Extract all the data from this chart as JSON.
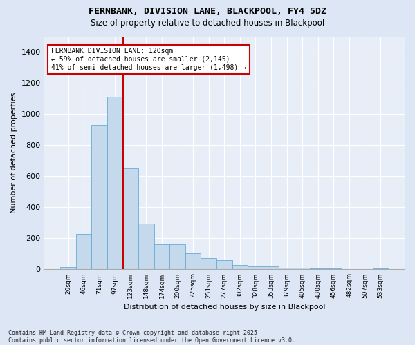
{
  "title1": "FERNBANK, DIVISION LANE, BLACKPOOL, FY4 5DZ",
  "title2": "Size of property relative to detached houses in Blackpool",
  "xlabel": "Distribution of detached houses by size in Blackpool",
  "ylabel": "Number of detached properties",
  "footnote": "Contains HM Land Registry data © Crown copyright and database right 2025.\nContains public sector information licensed under the Open Government Licence v3.0.",
  "bar_values": [
    15,
    230,
    930,
    1110,
    650,
    295,
    160,
    160,
    105,
    75,
    60,
    30,
    20,
    20,
    10,
    10,
    8,
    5,
    3,
    0,
    8
  ],
  "bin_labels": [
    "20sqm",
    "46sqm",
    "71sqm",
    "97sqm",
    "123sqm",
    "148sqm",
    "174sqm",
    "200sqm",
    "225sqm",
    "251sqm",
    "277sqm",
    "302sqm",
    "328sqm",
    "353sqm",
    "379sqm",
    "405sqm",
    "430sqm",
    "456sqm",
    "482sqm",
    "507sqm",
    "533sqm"
  ],
  "bar_color": "#c5d9ed",
  "bar_edgecolor": "#6aabd2",
  "vline_color": "#cc0000",
  "annotation_text": "FERNBANK DIVISION LANE: 120sqm\n← 59% of detached houses are smaller (2,145)\n41% of semi-detached houses are larger (1,498) →",
  "annotation_box_facecolor": "white",
  "annotation_box_edgecolor": "#cc0000",
  "ylim": [
    0,
    1500
  ],
  "yticks": [
    0,
    200,
    400,
    600,
    800,
    1000,
    1200,
    1400
  ],
  "background_color": "#dce6f5",
  "plot_background": "#e8eef8",
  "grid_color": "#ffffff",
  "vline_position": 3.5
}
